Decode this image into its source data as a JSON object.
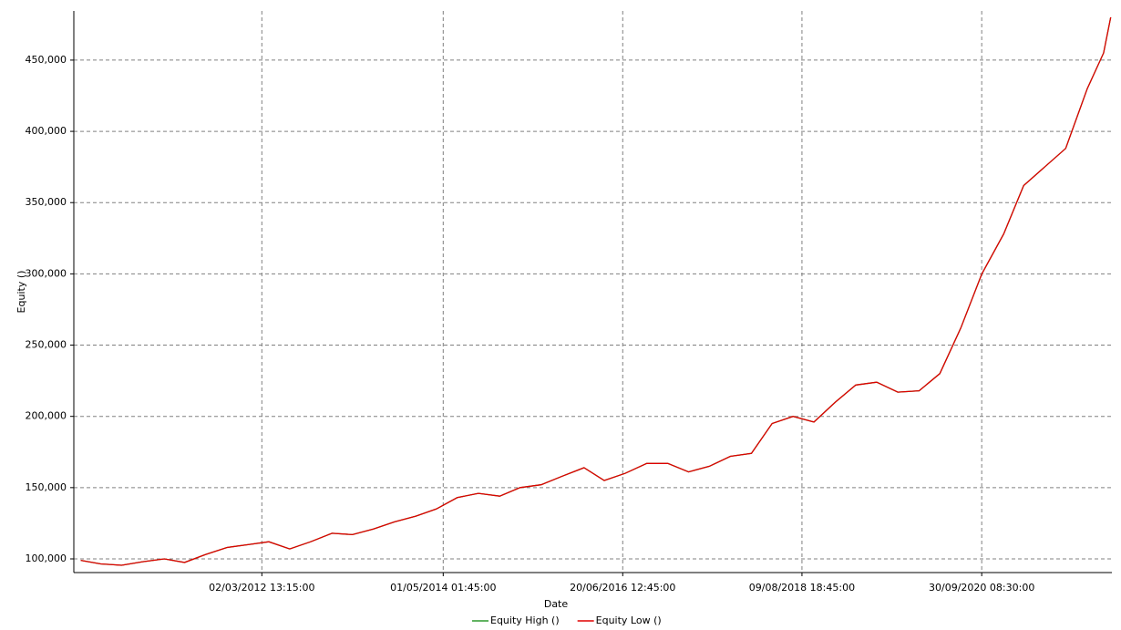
{
  "chart_data": {
    "type": "line",
    "x_label": "Date",
    "y_label": "Equity ()",
    "x": [
      "2010-01-04",
      "2010-04-01",
      "2010-07-01",
      "2010-10-01",
      "2011-01-03",
      "2011-04-01",
      "2011-07-01",
      "2011-10-03",
      "2012-01-02",
      "2012-04-02",
      "2012-07-02",
      "2012-10-01",
      "2013-01-02",
      "2013-04-01",
      "2013-07-01",
      "2013-10-01",
      "2014-01-02",
      "2014-04-01",
      "2014-07-01",
      "2014-10-01",
      "2015-01-02",
      "2015-04-01",
      "2015-07-01",
      "2015-10-01",
      "2016-01-04",
      "2016-04-01",
      "2016-07-01",
      "2016-10-03",
      "2017-01-03",
      "2017-04-03",
      "2017-07-03",
      "2017-10-02",
      "2018-01-02",
      "2018-04-02",
      "2018-07-02",
      "2018-10-01",
      "2019-01-02",
      "2019-04-01",
      "2019-07-01",
      "2019-10-01",
      "2020-01-02",
      "2020-04-01",
      "2020-07-01",
      "2020-10-01",
      "2021-01-04",
      "2021-04-01",
      "2021-07-01",
      "2021-10-01",
      "2022-01-03",
      "2022-03-15",
      "2022-04-15"
    ],
    "series": [
      {
        "name": "Equity High ()",
        "color": "#2e9a2e",
        "values": [
          99000,
          96500,
          95500,
          98000,
          100000,
          97500,
          103000,
          108000,
          110000,
          112000,
          107000,
          112000,
          118000,
          117000,
          121000,
          126000,
          130000,
          135000,
          143000,
          146000,
          144000,
          150000,
          152000,
          158000,
          164000,
          155000,
          160000,
          167000,
          167000,
          161000,
          165000,
          172000,
          174000,
          195000,
          200000,
          196000,
          210000,
          222000,
          224000,
          217000,
          218000,
          230000,
          262000,
          300000,
          328000,
          362000,
          375000,
          388000,
          430000,
          455000,
          480000
        ]
      },
      {
        "name": "Equity Low ()",
        "color": "#e00000",
        "values": [
          99000,
          96500,
          95500,
          98000,
          100000,
          97500,
          103000,
          108000,
          110000,
          112000,
          107000,
          112000,
          118000,
          117000,
          121000,
          126000,
          130000,
          135000,
          143000,
          146000,
          144000,
          150000,
          152000,
          158000,
          164000,
          155000,
          160000,
          167000,
          167000,
          161000,
          165000,
          172000,
          174000,
          195000,
          200000,
          196000,
          210000,
          222000,
          224000,
          217000,
          218000,
          230000,
          262000,
          300000,
          328000,
          362000,
          375000,
          388000,
          430000,
          455000,
          480000
        ]
      }
    ],
    "xlim": [
      "2009-12-05",
      "2022-04-20"
    ],
    "xticks": [
      {
        "value": "2012-03-02T13:15:00",
        "label": "02/03/2012 13:15:00"
      },
      {
        "value": "2014-05-01T01:45:00",
        "label": "01/05/2014 01:45:00"
      },
      {
        "value": "2016-06-20T12:45:00",
        "label": "20/06/2016 12:45:00"
      },
      {
        "value": "2018-08-09T18:45:00",
        "label": "09/08/2018 18:45:00"
      },
      {
        "value": "2020-09-30T08:30:00",
        "label": "30/09/2020 08:30:00"
      }
    ],
    "ylim": [
      90400,
      484500
    ],
    "yticks": [
      {
        "value": 100000,
        "label": "100,000"
      },
      {
        "value": 150000,
        "label": "150,000"
      },
      {
        "value": 200000,
        "label": "200,000"
      },
      {
        "value": 250000,
        "label": "250,000"
      },
      {
        "value": 300000,
        "label": "300,000"
      },
      {
        "value": 350000,
        "label": "350,000"
      },
      {
        "value": 400000,
        "label": "400,000"
      },
      {
        "value": 450000,
        "label": "450,000"
      }
    ],
    "grid": true,
    "legend": "bottom"
  }
}
